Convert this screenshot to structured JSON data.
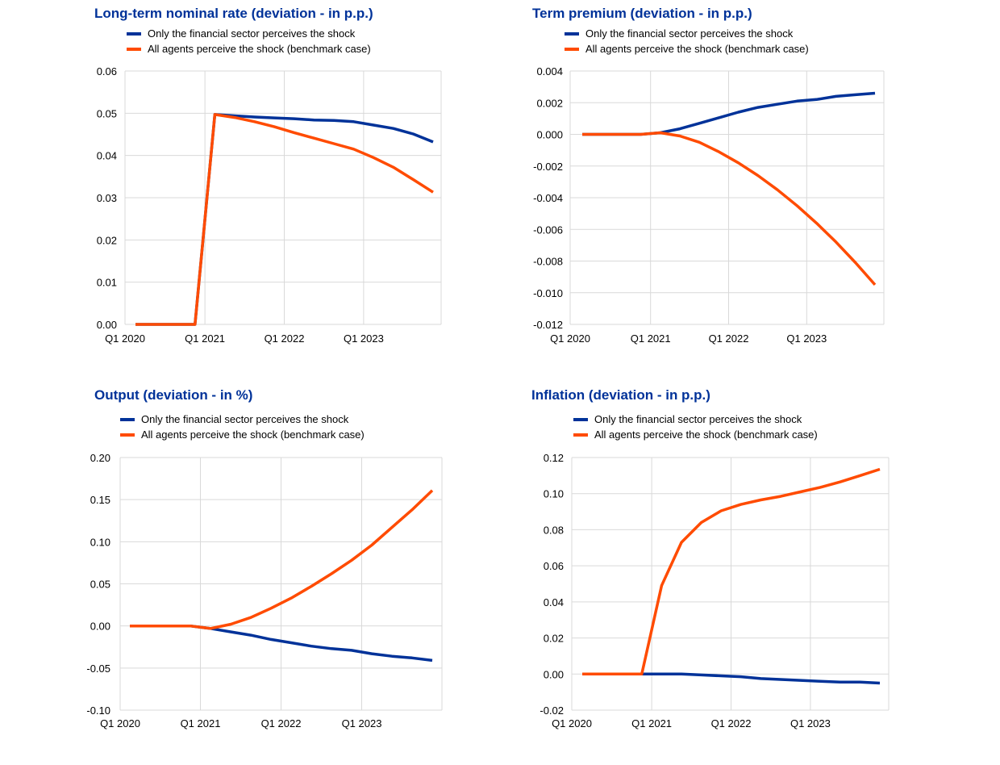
{
  "colors": {
    "series_blue": "#003299",
    "series_orange": "#FF4B00",
    "grid": "#d9d9d9",
    "title": "#003299"
  },
  "legend_labels": {
    "blue": "Only the financial sector perceives the shock",
    "orange": "All agents perceive the shock (benchmark case)"
  },
  "chart_data": [
    {
      "type": "line",
      "title": "Long-term nominal rate (deviation - in p.p.)",
      "xlabel": "",
      "ylabel": "",
      "x_tick_labels": [
        "Q1 2020",
        "Q1 2021",
        "Q1 2022",
        "Q1 2023"
      ],
      "y_tick_labels": [
        "0.06",
        "0.05",
        "0.04",
        "0.03",
        "0.02",
        "0.01",
        "0.00"
      ],
      "ylim": [
        0,
        0.06
      ],
      "grid": true,
      "legend_position": "top-left",
      "x": [
        "Q1 2020",
        "Q2 2020",
        "Q3 2020",
        "Q4 2020",
        "Q1 2021",
        "Q2 2021",
        "Q3 2021",
        "Q4 2021",
        "Q1 2022",
        "Q2 2022",
        "Q3 2022",
        "Q4 2022",
        "Q1 2023",
        "Q2 2023",
        "Q3 2023",
        "Q4 2023"
      ],
      "series": [
        {
          "name": "Only the financial sector perceives the shock",
          "color": "#003299",
          "values": [
            0.0,
            0.0,
            0.0,
            0.0,
            0.0497,
            0.0494,
            0.0491,
            0.0489,
            0.0487,
            0.0484,
            0.0483,
            0.048,
            0.0472,
            0.0464,
            0.0451,
            0.0432
          ]
        },
        {
          "name": "All agents perceive the shock (benchmark case)",
          "color": "#FF4B00",
          "values": [
            0.0,
            0.0,
            0.0,
            0.0,
            0.0497,
            0.049,
            0.048,
            0.0468,
            0.0454,
            0.0441,
            0.0428,
            0.0415,
            0.0395,
            0.0372,
            0.0343,
            0.0313
          ]
        }
      ]
    },
    {
      "type": "line",
      "title": "Term premium (deviation - in p.p.)",
      "xlabel": "",
      "ylabel": "",
      "x_tick_labels": [
        "Q1 2020",
        "Q1 2021",
        "Q1 2022",
        "Q1 2023"
      ],
      "y_tick_labels": [
        "0.004",
        "0.002",
        "0.000",
        "-0.002",
        "-0.004",
        "-0.006",
        "-0.008",
        "-0.010",
        "-0.012"
      ],
      "ylim": [
        -0.012,
        0.004
      ],
      "grid": true,
      "legend_position": "top-left",
      "x": [
        "Q1 2020",
        "Q2 2020",
        "Q3 2020",
        "Q4 2020",
        "Q1 2021",
        "Q2 2021",
        "Q3 2021",
        "Q4 2021",
        "Q1 2022",
        "Q2 2022",
        "Q3 2022",
        "Q4 2022",
        "Q1 2023",
        "Q2 2023",
        "Q3 2023",
        "Q4 2023"
      ],
      "series": [
        {
          "name": "Only the financial sector perceives the shock",
          "color": "#003299",
          "values": [
            0.0,
            0.0,
            0.0,
            0.0,
            0.0001,
            0.00035,
            0.0007,
            0.00105,
            0.0014,
            0.0017,
            0.0019,
            0.0021,
            0.0022,
            0.0024,
            0.0025,
            0.0026
          ]
        },
        {
          "name": "All agents perceive the shock (benchmark case)",
          "color": "#FF4B00",
          "values": [
            0.0,
            0.0,
            0.0,
            0.0,
            0.0001,
            -0.0001,
            -0.0005,
            -0.0011,
            -0.0018,
            -0.0026,
            -0.0035,
            -0.0045,
            -0.0056,
            -0.0068,
            -0.0081,
            -0.0095
          ]
        }
      ]
    },
    {
      "type": "line",
      "title": "Output (deviation - in %)",
      "xlabel": "",
      "ylabel": "",
      "x_tick_labels": [
        "Q1 2020",
        "Q1 2021",
        "Q1 2022",
        "Q1 2023"
      ],
      "y_tick_labels": [
        "0.20",
        "0.15",
        "0.10",
        "0.05",
        "0.00",
        "-0.05",
        "-0.10"
      ],
      "ylim": [
        -0.1,
        0.2
      ],
      "grid": true,
      "legend_position": "top-left",
      "x": [
        "Q1 2020",
        "Q2 2020",
        "Q3 2020",
        "Q4 2020",
        "Q1 2021",
        "Q2 2021",
        "Q3 2021",
        "Q4 2021",
        "Q1 2022",
        "Q2 2022",
        "Q3 2022",
        "Q4 2022",
        "Q1 2023",
        "Q2 2023",
        "Q3 2023",
        "Q4 2023"
      ],
      "series": [
        {
          "name": "Only the financial sector perceives the shock",
          "color": "#003299",
          "values": [
            0.0,
            0.0,
            0.0,
            0.0,
            -0.003,
            -0.007,
            -0.011,
            -0.016,
            -0.02,
            -0.024,
            -0.027,
            -0.029,
            -0.033,
            -0.036,
            -0.038,
            -0.041
          ]
        },
        {
          "name": "All agents perceive the shock (benchmark case)",
          "color": "#FF4B00",
          "values": [
            0.0,
            0.0,
            0.0,
            0.0,
            -0.003,
            0.002,
            0.01,
            0.021,
            0.033,
            0.047,
            0.062,
            0.078,
            0.096,
            0.117,
            0.138,
            0.161
          ]
        }
      ]
    },
    {
      "type": "line",
      "title": "Inflation (deviation - in p.p.)",
      "xlabel": "",
      "ylabel": "",
      "x_tick_labels": [
        "Q1 2020",
        "Q1 2021",
        "Q1 2022",
        "Q1 2023"
      ],
      "y_tick_labels": [
        "0.12",
        "0.10",
        "0.08",
        "0.06",
        "0.04",
        "0.02",
        "0.00",
        "-0.02"
      ],
      "ylim": [
        -0.02,
        0.12
      ],
      "grid": true,
      "legend_position": "top-left",
      "x": [
        "Q1 2020",
        "Q2 2020",
        "Q3 2020",
        "Q4 2020",
        "Q1 2021",
        "Q2 2021",
        "Q3 2021",
        "Q4 2021",
        "Q1 2022",
        "Q2 2022",
        "Q3 2022",
        "Q4 2022",
        "Q1 2023",
        "Q2 2023",
        "Q3 2023",
        "Q4 2023"
      ],
      "series": [
        {
          "name": "Only the financial sector perceives the shock",
          "color": "#003299",
          "values": [
            0.0,
            0.0,
            0.0,
            0.0,
            0.0,
            0.0,
            -0.0005,
            -0.001,
            -0.0015,
            -0.0025,
            -0.003,
            -0.0035,
            -0.004,
            -0.0045,
            -0.0045,
            -0.005
          ]
        },
        {
          "name": "All agents perceive the shock (benchmark case)",
          "color": "#FF4B00",
          "values": [
            0.0,
            0.0,
            0.0,
            0.0,
            0.049,
            0.073,
            0.084,
            0.0905,
            0.094,
            0.0965,
            0.0985,
            0.101,
            0.1035,
            0.1065,
            0.11,
            0.1135
          ]
        }
      ]
    }
  ]
}
